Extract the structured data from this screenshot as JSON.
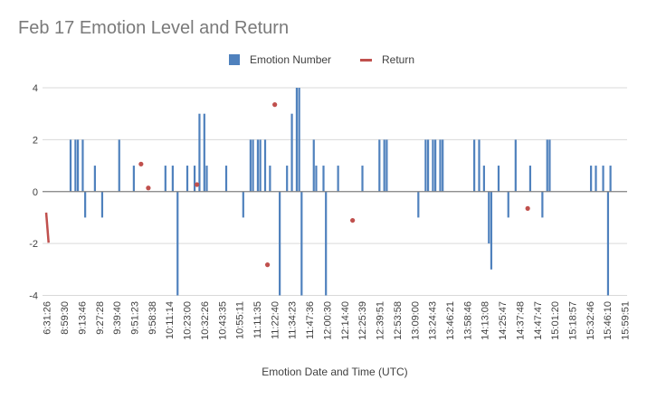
{
  "chart_data": {
    "type": "bar",
    "title": "Feb 17 Emotion Level and Return",
    "xlabel": "Emotion Date and Time (UTC)",
    "ylabel": "",
    "ylim": [
      -4,
      4
    ],
    "yticks": [
      -4,
      -2,
      0,
      2,
      4
    ],
    "grid": true,
    "legend_position": "top",
    "category_count": 240,
    "x_tick_labels": [
      "6:31:26",
      "8:59:30",
      "9:13:46",
      "9:27:28",
      "9:39:40",
      "9:51:23",
      "9:58:38",
      "10:11:14",
      "10:23:00",
      "10:32:26",
      "10:43:35",
      "10:55:11",
      "11:11:35",
      "11:22:40",
      "11:34:23",
      "11:47:36",
      "12:00:30",
      "12:14:40",
      "12:25:39",
      "12:39:51",
      "12:53:58",
      "13:09:00",
      "13:24:43",
      "13:46:21",
      "13:58:46",
      "14:13:08",
      "14:25:47",
      "14:37:48",
      "14:47:47",
      "15:01:20",
      "15:18:57",
      "15:32:46",
      "15:46:10",
      "15:59:51"
    ],
    "series": [
      {
        "name": "Emotion Number",
        "type": "bar",
        "color": "#4f81bd",
        "points": [
          [
            11,
            2
          ],
          [
            13,
            2
          ],
          [
            14,
            2
          ],
          [
            16,
            2
          ],
          [
            17,
            -1
          ],
          [
            21,
            1
          ],
          [
            24,
            -1
          ],
          [
            31,
            2
          ],
          [
            37,
            1
          ],
          [
            50,
            1
          ],
          [
            53,
            1
          ],
          [
            55,
            -4
          ],
          [
            59,
            1
          ],
          [
            62,
            1
          ],
          [
            64,
            3
          ],
          [
            66,
            3
          ],
          [
            67,
            1
          ],
          [
            75,
            1
          ],
          [
            82,
            -1
          ],
          [
            85,
            2
          ],
          [
            86,
            2
          ],
          [
            88,
            2
          ],
          [
            89,
            2
          ],
          [
            91,
            2
          ],
          [
            93,
            1
          ],
          [
            97,
            -4
          ],
          [
            100,
            1
          ],
          [
            102,
            3
          ],
          [
            104,
            4
          ],
          [
            105,
            4
          ],
          [
            106,
            -4
          ],
          [
            111,
            2
          ],
          [
            112,
            1
          ],
          [
            115,
            1
          ],
          [
            116,
            -4
          ],
          [
            121,
            1
          ],
          [
            131,
            1
          ],
          [
            138,
            2
          ],
          [
            140,
            2
          ],
          [
            141,
            2
          ],
          [
            154,
            -1
          ],
          [
            157,
            2
          ],
          [
            158,
            2
          ],
          [
            160,
            2
          ],
          [
            161,
            2
          ],
          [
            163,
            2
          ],
          [
            164,
            2
          ],
          [
            177,
            2
          ],
          [
            179,
            2
          ],
          [
            181,
            1
          ],
          [
            183,
            -2
          ],
          [
            184,
            -3
          ],
          [
            187,
            1
          ],
          [
            191,
            -1
          ],
          [
            194,
            2
          ],
          [
            200,
            1
          ],
          [
            205,
            -1
          ],
          [
            207,
            2
          ],
          [
            208,
            2
          ],
          [
            225,
            1
          ],
          [
            227,
            1
          ],
          [
            230,
            1
          ],
          [
            232,
            -4
          ],
          [
            233,
            1
          ]
        ]
      },
      {
        "name": "Return",
        "type": "line",
        "color": "#c0504d",
        "points": [
          [
            1,
            -0.81
          ],
          [
            2,
            -1.97
          ],
          [
            40,
            1.06
          ],
          [
            43,
            0.14
          ],
          [
            63,
            0.27
          ],
          [
            92,
            -2.82
          ],
          [
            95,
            3.35
          ],
          [
            127,
            -1.11
          ],
          [
            199,
            -0.65
          ]
        ]
      }
    ]
  }
}
